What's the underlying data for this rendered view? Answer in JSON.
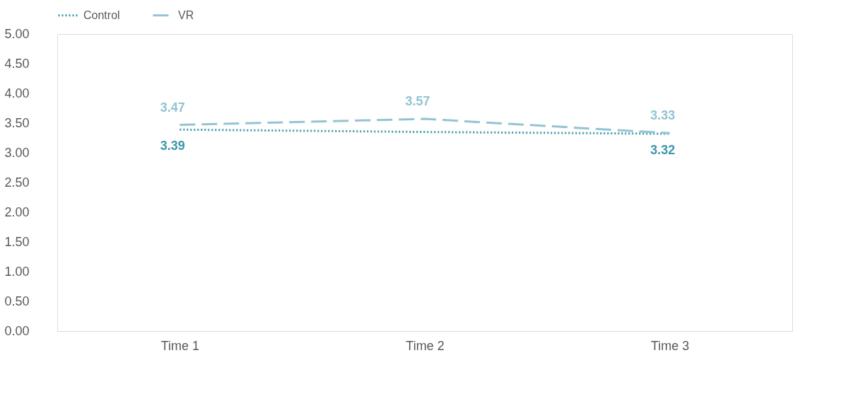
{
  "chart_data": {
    "type": "line",
    "categories": [
      "Time 1",
      "Time 2",
      "Time 3"
    ],
    "series": [
      {
        "name": "Control",
        "color": "#3b98aa",
        "line_style": "dotted",
        "values": [
          3.39,
          3.35,
          3.32
        ],
        "value_labels": [
          "3.39",
          null,
          "3.32"
        ]
      },
      {
        "name": "VR",
        "color": "#93c4d3",
        "line_style": "dashed",
        "values": [
          3.47,
          3.57,
          3.33
        ],
        "value_labels": [
          "3.47",
          "3.57",
          "3.33"
        ]
      }
    ],
    "ylim": [
      0,
      5
    ],
    "yticks": [
      {
        "value": 0,
        "label": "0.00"
      },
      {
        "value": 0.5,
        "label": "0.50"
      },
      {
        "value": 1,
        "label": "1.00"
      },
      {
        "value": 1.5,
        "label": "1.50"
      },
      {
        "value": 2,
        "label": "2.00"
      },
      {
        "value": 2.5,
        "label": "2.50"
      },
      {
        "value": 3,
        "label": "3.00"
      },
      {
        "value": 3.5,
        "label": "3.50"
      },
      {
        "value": 4,
        "label": "4.00"
      },
      {
        "value": 4.5,
        "label": "4.50"
      },
      {
        "value": 5,
        "label": "5.00"
      }
    ],
    "grid": false,
    "legend": "top",
    "marker": "none"
  }
}
